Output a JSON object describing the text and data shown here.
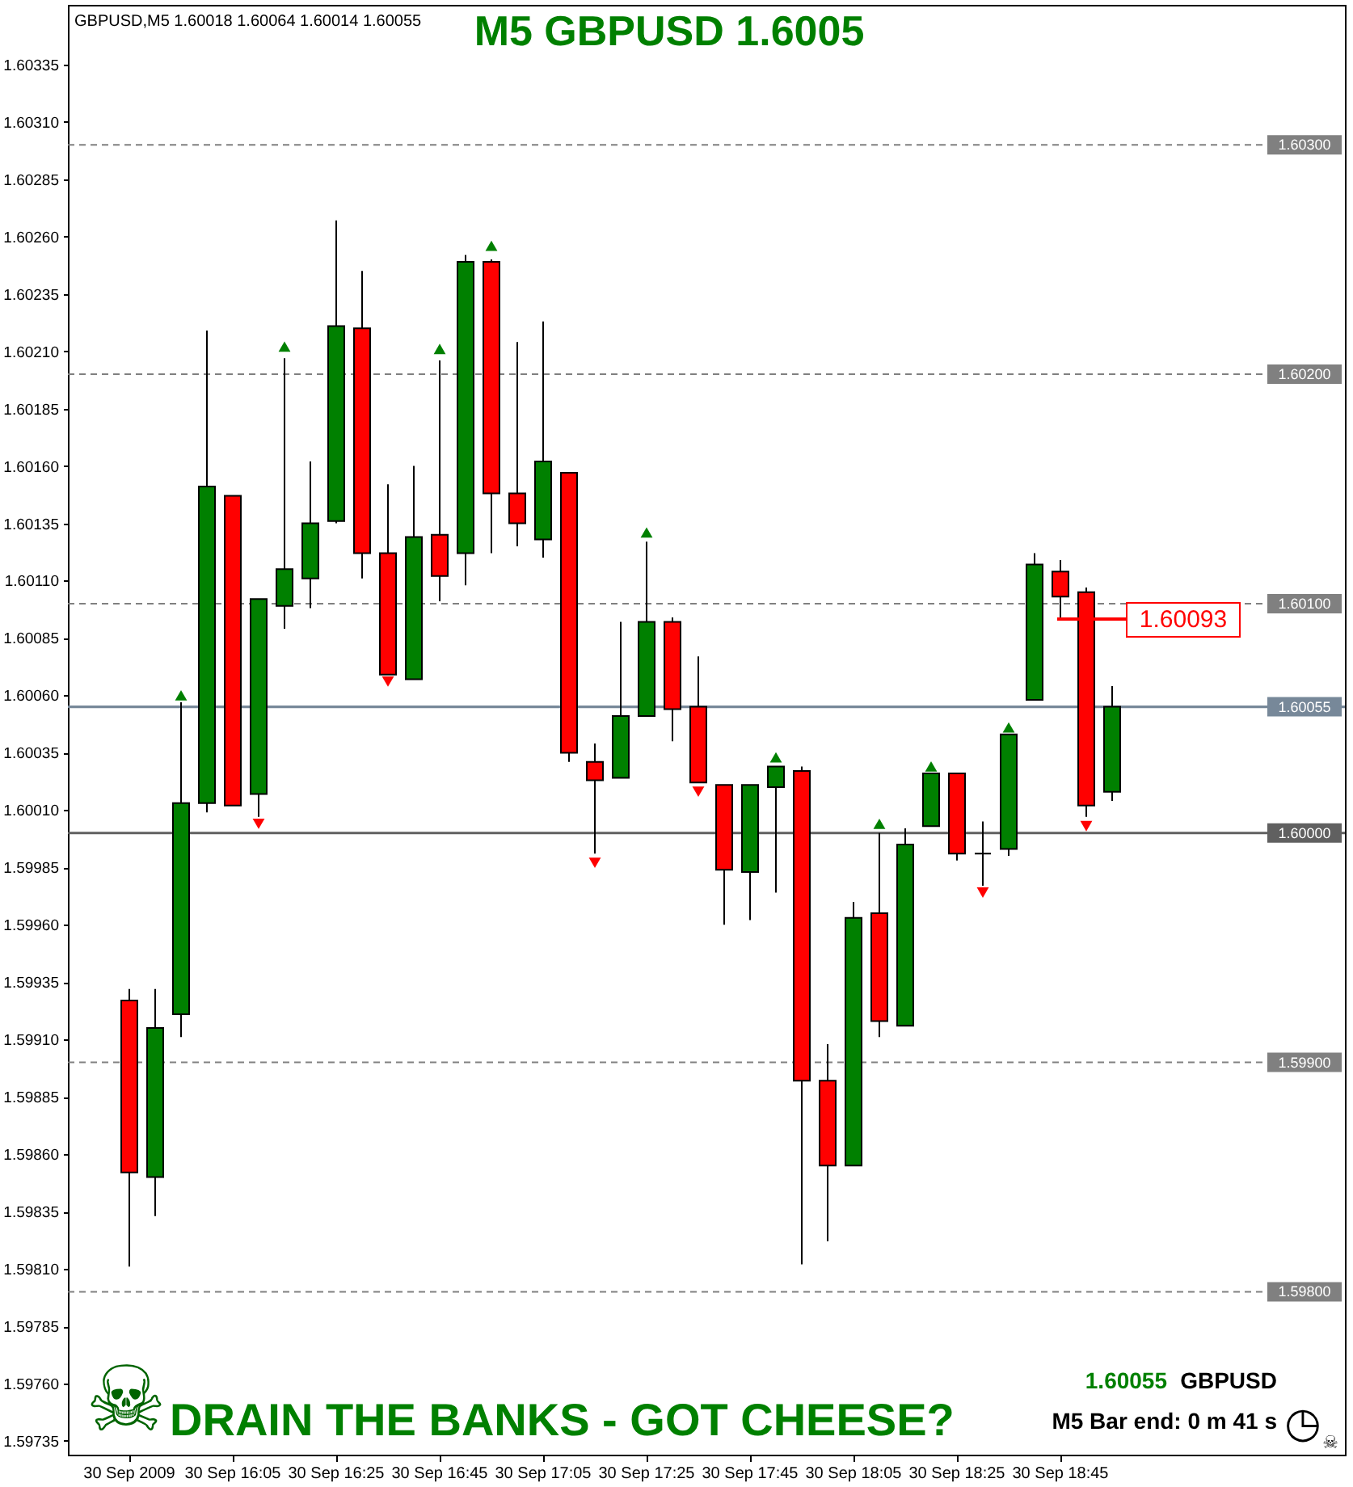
{
  "chart_data": {
    "type": "candlestick",
    "title": "M5 GBPUSD 1.6005",
    "subtitle": "GBPUSD,M5  1.60018 1.60064 1.60014 1.60055",
    "categories": [
      "30 Sep 2009",
      null,
      null,
      null,
      "30 Sep 16:05",
      null,
      null,
      null,
      "30 Sep 16:25",
      null,
      null,
      null,
      "30 Sep 16:45",
      null,
      null,
      null,
      "30 Sep 17:05",
      null,
      null,
      null,
      "30 Sep 17:25",
      null,
      null,
      null,
      "30 Sep 17:45",
      null,
      null,
      null,
      "30 Sep 18:05",
      null,
      null,
      null,
      "30 Sep 18:25",
      null,
      null,
      null,
      "30 Sep 18:45",
      null,
      null
    ],
    "ohlc": [
      [
        1.59927,
        1.59932,
        1.59811,
        1.59852
      ],
      [
        1.5985,
        1.59932,
        1.59833,
        1.59915
      ],
      [
        1.59921,
        1.60057,
        1.59911,
        1.60013
      ],
      [
        1.60013,
        1.60219,
        1.60009,
        1.60151
      ],
      [
        1.60147,
        1.60147,
        1.60012,
        1.60012
      ],
      [
        1.60017,
        1.60102,
        1.60007,
        1.60102
      ],
      [
        1.60099,
        1.60207,
        1.60089,
        1.60115
      ],
      [
        1.60111,
        1.60162,
        1.60098,
        1.60135
      ],
      [
        1.60136,
        1.60267,
        1.60135,
        1.60221
      ],
      [
        1.6022,
        1.60245,
        1.60111,
        1.60122
      ],
      [
        1.60122,
        1.60152,
        1.60069,
        1.60069
      ],
      [
        1.60067,
        1.6016,
        1.60067,
        1.60129
      ],
      [
        1.6013,
        1.60206,
        1.60101,
        1.60112
      ],
      [
        1.60122,
        1.60252,
        1.60108,
        1.60249
      ],
      [
        1.60249,
        1.6025,
        1.60122,
        1.60148
      ],
      [
        1.60148,
        1.60214,
        1.60125,
        1.60135
      ],
      [
        1.60128,
        1.60223,
        1.6012,
        1.60162
      ],
      [
        1.60157,
        1.60157,
        1.60031,
        1.60035
      ],
      [
        1.60031,
        1.60039,
        1.59991,
        1.60023
      ],
      [
        1.60024,
        1.60092,
        1.60024,
        1.60051
      ],
      [
        1.60051,
        1.60127,
        1.60051,
        1.60092
      ],
      [
        1.60092,
        1.60094,
        1.6004,
        1.60054
      ],
      [
        1.60055,
        1.60077,
        1.60022,
        1.60022
      ],
      [
        1.60021,
        1.60021,
        1.5996,
        1.59984
      ],
      [
        1.59983,
        1.60021,
        1.59962,
        1.60021
      ],
      [
        1.6002,
        1.60029,
        1.59974,
        1.60029
      ],
      [
        1.60027,
        1.60029,
        1.59812,
        1.59892
      ],
      [
        1.59892,
        1.59908,
        1.59822,
        1.59855
      ],
      [
        1.59855,
        1.5997,
        1.59855,
        1.59963
      ],
      [
        1.59965,
        1.6,
        1.59911,
        1.59918
      ],
      [
        1.59916,
        1.60002,
        1.59916,
        1.59995
      ],
      [
        1.60003,
        1.60026,
        1.60003,
        1.60026
      ],
      [
        1.60026,
        1.60026,
        1.59988,
        1.59991
      ],
      [
        1.59991,
        1.60005,
        1.59977,
        1.59991
      ],
      [
        1.59993,
        1.60043,
        1.5999,
        1.60043
      ],
      [
        1.60058,
        1.60122,
        1.60058,
        1.60117
      ],
      [
        1.60114,
        1.60119,
        1.60093,
        1.60103
      ],
      [
        1.60105,
        1.60107,
        1.60007,
        1.60012
      ],
      [
        1.60018,
        1.60064,
        1.60014,
        1.60055
      ]
    ],
    "colors": [
      "#ff0000",
      "#008000",
      "#008000",
      "#008000",
      "#ff0000",
      "#008000",
      "#008000",
      "#008000",
      "#008000",
      "#ff0000",
      "#ff0000",
      "#008000",
      "#ff0000",
      "#008000",
      "#ff0000",
      "#ff0000",
      "#008000",
      "#ff0000",
      "#ff0000",
      "#008000",
      "#008000",
      "#ff0000",
      "#ff0000",
      "#ff0000",
      "#008000",
      "#008000",
      "#ff0000",
      "#ff0000",
      "#008000",
      "#ff0000",
      "#008000",
      "#008000",
      "#ff0000",
      "#000000",
      "#008000",
      "#008000",
      "#ff0000",
      "#ff0000",
      "#008000"
    ],
    "series": [
      {
        "type": "scatter",
        "color": "#008000",
        "marker": "triangle",
        "values": [
          null,
          null,
          1.6006,
          null,
          null,
          null,
          1.60212,
          null,
          null,
          null,
          null,
          null,
          1.60211,
          null,
          1.60256,
          null,
          null,
          null,
          null,
          null,
          1.60131,
          null,
          null,
          null,
          null,
          1.60033,
          null,
          null,
          null,
          1.60004,
          null,
          1.60029,
          null,
          null,
          1.60046,
          null,
          null,
          null,
          null
        ]
      },
      {
        "type": "scatter",
        "color": "#ff0000",
        "marker": "triangle",
        "values": [
          null,
          null,
          null,
          null,
          null,
          1.60004,
          null,
          null,
          null,
          null,
          1.60066,
          null,
          null,
          null,
          null,
          null,
          null,
          null,
          1.59987,
          null,
          null,
          null,
          1.60018,
          null,
          null,
          null,
          null,
          null,
          null,
          null,
          null,
          null,
          null,
          1.59974,
          null,
          null,
          null,
          1.60003,
          null
        ]
      }
    ],
    "ylim": [
      1.59729,
      1.60361
    ],
    "yticks": [
      1.59735,
      {
        "value": 1.5976,
        "label": "1.59760"
      },
      1.59785,
      {
        "value": 1.5981,
        "label": "1.59810"
      },
      1.59835,
      {
        "value": 1.5986,
        "label": "1.59860"
      },
      1.59885,
      {
        "value": 1.5991,
        "label": "1.59910"
      },
      1.59935,
      {
        "value": 1.5996,
        "label": "1.59960"
      },
      1.59985,
      {
        "value": 1.6001,
        "label": "1.60010"
      },
      1.60035,
      {
        "value": 1.6006,
        "label": "1.60060"
      },
      1.60085,
      {
        "value": 1.6011,
        "label": "1.60110"
      },
      1.60135,
      {
        "value": 1.6016,
        "label": "1.60160"
      },
      1.60185,
      {
        "value": 1.6021,
        "label": "1.60210"
      },
      1.60235,
      {
        "value": 1.6026,
        "label": "1.60260"
      },
      1.60285,
      {
        "value": 1.6031,
        "label": "1.60310"
      },
      1.60335
    ],
    "ref_lines": [
      {
        "axis": "y",
        "value": 1.603,
        "label": "1.60300",
        "color": "#808080",
        "line_style": "dashed"
      },
      {
        "axis": "y",
        "value": 1.602,
        "label": "1.60200",
        "color": "#808080",
        "line_style": "dashed"
      },
      {
        "axis": "y",
        "value": 1.601,
        "label": "1.60100",
        "color": "#808080",
        "line_style": "dashed"
      },
      {
        "axis": "y",
        "value": 1.6,
        "label": "1.60000",
        "color": "#606060",
        "line_style": "solid"
      },
      {
        "axis": "y",
        "value": 1.599,
        "label": "1.59900",
        "color": "#808080",
        "line_style": "dashed"
      },
      {
        "axis": "y",
        "value": 1.598,
        "label": "1.59800",
        "color": "#808080",
        "line_style": "dashed"
      },
      {
        "axis": "y",
        "value": 1.60055,
        "label": "1.60055",
        "color": "#778899",
        "line_style": "solid"
      }
    ],
    "annotations": [
      "DRAIN THE BANKS - GOT CHEESE?",
      "1.60055",
      "GBPUSD",
      "M5 Bar end: 0 m 41 s",
      "1.60093",
      "☠",
      "◷",
      "☠"
    ]
  }
}
